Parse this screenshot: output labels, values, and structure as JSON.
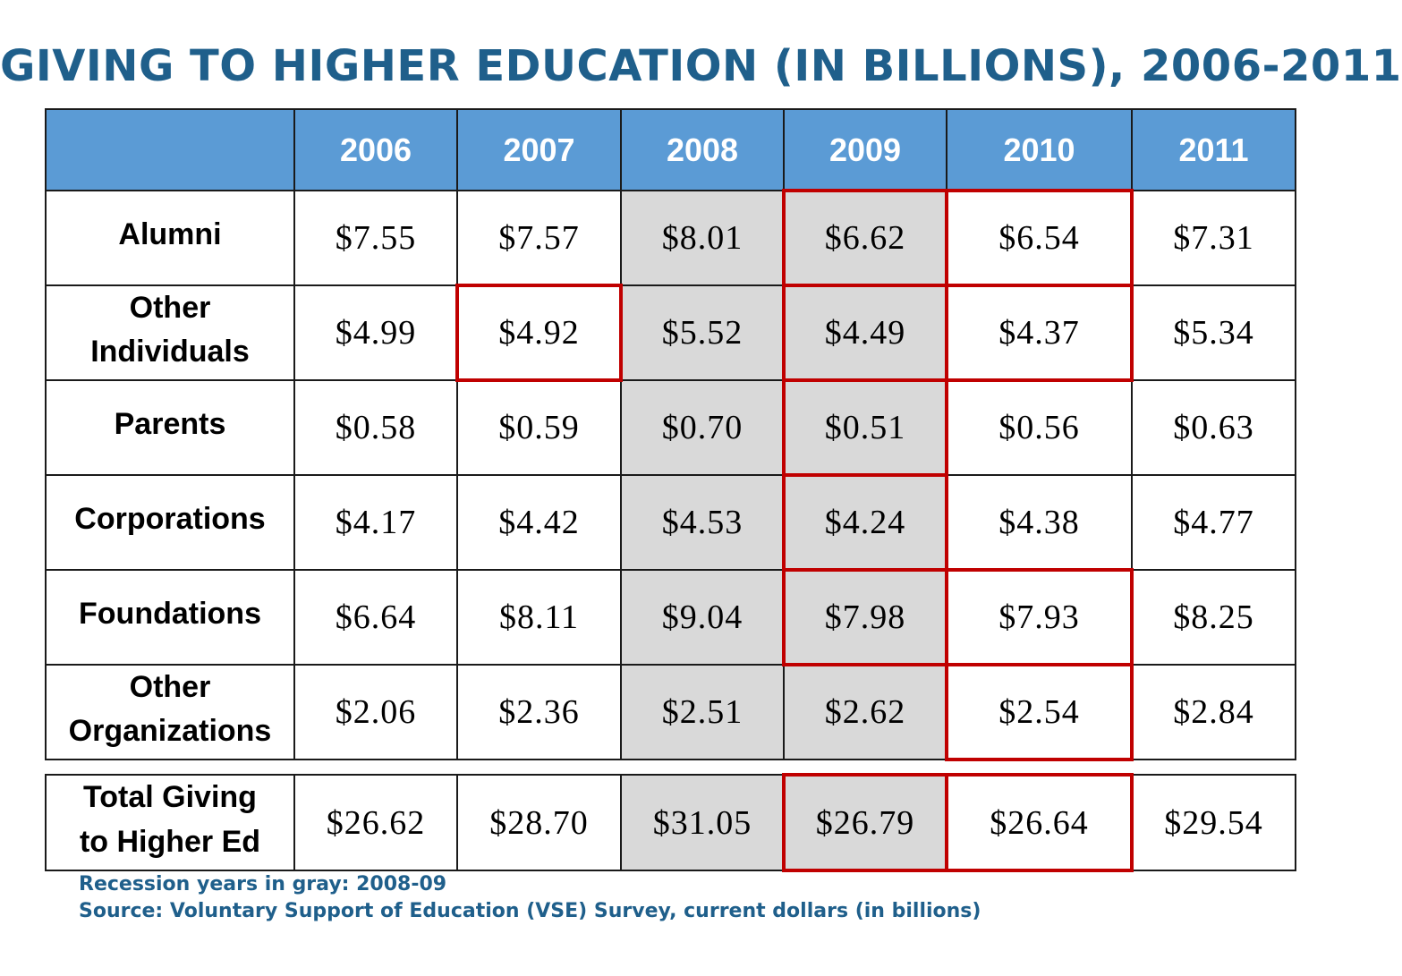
{
  "title": "GIVING TO HIGHER EDUCATION (IN BILLIONS), 2006-2011",
  "notes": [
    "Recession years in gray: 2008-09",
    "Source: Voluntary Support of Education (VSE) Survey, current dollars (in billions)"
  ],
  "colors": {
    "title": "#1f5f8b",
    "header_bg": "#5b9bd5",
    "recession_gray": "#d9d9d9",
    "highlight_red": "#c00000"
  },
  "chart_data": {
    "type": "table",
    "title": "GIVING TO HIGHER EDUCATION (IN BILLIONS), 2006-2011",
    "columns": [
      "2006",
      "2007",
      "2008",
      "2009",
      "2010",
      "2011"
    ],
    "recession_columns": [
      "2008",
      "2009"
    ],
    "rows": [
      {
        "label": [
          "Alumni"
        ],
        "values": [
          "$7.55",
          "$7.57",
          "$8.01",
          "$6.62",
          "$6.54",
          "$7.31"
        ]
      },
      {
        "label": [
          "Other",
          "Individuals"
        ],
        "values": [
          "$4.99",
          "$4.92",
          "$5.52",
          "$4.49",
          "$4.37",
          "$5.34"
        ]
      },
      {
        "label": [
          "Parents"
        ],
        "values": [
          "$0.58",
          "$0.59",
          "$0.70",
          "$0.51",
          "$0.56",
          "$0.63"
        ]
      },
      {
        "label": [
          "Corporations"
        ],
        "values": [
          "$4.17",
          "$4.42",
          "$4.53",
          "$4.24",
          "$4.38",
          "$4.77"
        ]
      },
      {
        "label": [
          "Foundations"
        ],
        "values": [
          "$6.64",
          "$8.11",
          "$9.04",
          "$7.98",
          "$7.93",
          "$8.25"
        ]
      },
      {
        "label": [
          "Other",
          "Organizations"
        ],
        "values": [
          "$2.06",
          "$2.36",
          "$2.51",
          "$2.62",
          "$2.54",
          "$2.84"
        ]
      }
    ],
    "total": {
      "label": [
        "Total Giving",
        "to Higher Ed"
      ],
      "values": [
        "$26.62",
        "$28.70",
        "$31.05",
        "$26.79",
        "$26.64",
        "$29.54"
      ]
    },
    "highlighted_cells": [
      {
        "row": "Alumni",
        "columns": [
          "2009",
          "2010"
        ]
      },
      {
        "row": "Other Individuals",
        "columns": [
          "2007",
          "2009",
          "2010"
        ]
      },
      {
        "row": "Parents",
        "columns": [
          "2009"
        ]
      },
      {
        "row": "Corporations",
        "columns": [
          "2009"
        ]
      },
      {
        "row": "Foundations",
        "columns": [
          "2009",
          "2010"
        ]
      },
      {
        "row": "Other Organizations",
        "columns": [
          "2010"
        ]
      },
      {
        "row": "Total Giving to Higher Ed",
        "columns": [
          "2009",
          "2010"
        ]
      }
    ]
  }
}
